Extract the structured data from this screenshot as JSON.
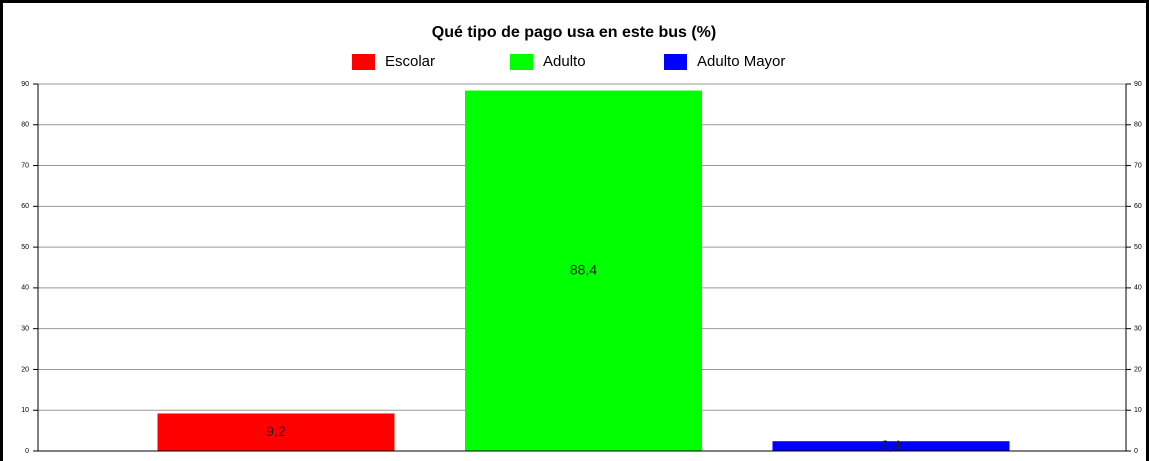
{
  "chart_data": {
    "type": "bar",
    "title": "Qué tipo de pago usa en este bus (%)",
    "series": [
      {
        "name": "Escolar",
        "color": "#ff0000",
        "values": [
          9.2
        ],
        "value_labels": [
          "9,2"
        ]
      },
      {
        "name": "Adulto",
        "color": "#00ff00",
        "values": [
          88.4
        ],
        "value_labels": [
          "88,4"
        ]
      },
      {
        "name": "Adulto Mayor",
        "color": "#0000ff",
        "values": [
          2.4
        ],
        "value_labels": [
          "2,4"
        ]
      }
    ],
    "ylim": [
      0,
      90
    ],
    "yticks": [
      0,
      10,
      20,
      30,
      40,
      50,
      60,
      70,
      80,
      90
    ],
    "y2lim": [
      0,
      90
    ],
    "y2ticks": [
      0,
      10,
      20,
      30,
      40,
      50,
      60,
      70,
      80,
      90
    ],
    "grid": true,
    "legend": "top"
  }
}
